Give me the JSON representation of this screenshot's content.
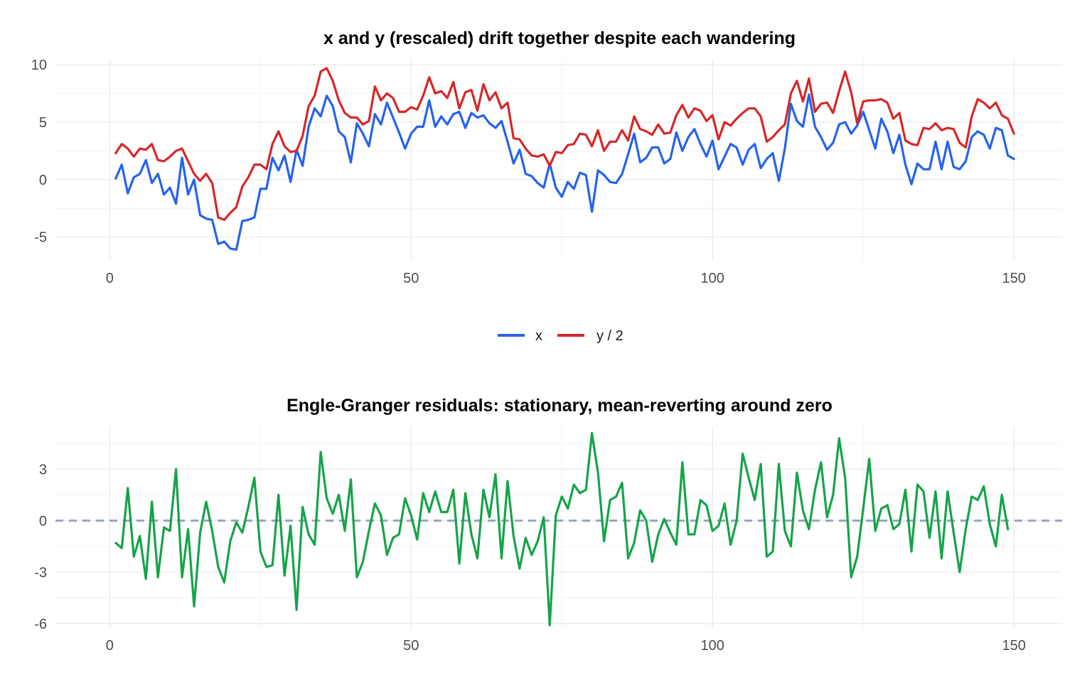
{
  "chart_data": [
    {
      "type": "line",
      "title": "x and y (rescaled) drift together despite each wandering",
      "xlabel": "",
      "ylabel": "",
      "xlim": [
        -9,
        158
      ],
      "ylim": [
        -7,
        10.5
      ],
      "x_ticks": [
        0,
        50,
        100,
        150
      ],
      "y_ticks": [
        -5,
        0,
        5,
        10
      ],
      "x_tick_labels": [
        "0",
        "50",
        "100",
        "150"
      ],
      "y_tick_labels": [
        "-5",
        "0",
        "5",
        "10"
      ],
      "grid": true,
      "legend": "bottom",
      "x_start": 1,
      "series": [
        {
          "name": "x",
          "color": "#2563eb",
          "values": [
            0.1,
            1.3,
            -1.2,
            0.2,
            0.5,
            1.7,
            -0.3,
            0.5,
            -1.3,
            -0.7,
            -2.1,
            1.9,
            -1.3,
            0.0,
            -3.1,
            -3.4,
            -3.5,
            -5.6,
            -5.4,
            -6.0,
            -6.1,
            -3.6,
            -3.5,
            -3.3,
            -0.8,
            -0.8,
            1.9,
            0.8,
            2.1,
            -0.2,
            2.6,
            1.2,
            4.6,
            6.2,
            5.5,
            7.3,
            6.4,
            4.2,
            3.7,
            1.5,
            4.9,
            4.0,
            2.9,
            5.7,
            4.8,
            6.7,
            5.4,
            4.1,
            2.7,
            4.0,
            4.6,
            4.6,
            6.9,
            4.6,
            5.5,
            4.8,
            5.7,
            5.9,
            4.5,
            5.8,
            5.4,
            5.6,
            4.9,
            4.5,
            5.1,
            3.3,
            1.4,
            2.6,
            0.5,
            0.3,
            -0.3,
            -0.7,
            1.4,
            -0.7,
            -1.5,
            -0.2,
            -0.8,
            0.6,
            0.4,
            -2.8,
            0.8,
            0.4,
            -0.2,
            -0.3,
            0.5,
            2.2,
            4.0,
            1.5,
            1.9,
            2.8,
            2.8,
            1.4,
            1.8,
            4.1,
            2.5,
            3.7,
            4.4,
            3.1,
            2.0,
            3.4,
            0.9,
            2.0,
            3.1,
            2.8,
            1.3,
            2.6,
            3.1,
            1.0,
            1.8,
            2.3,
            -0.1,
            2.7,
            6.6,
            5.1,
            4.6,
            7.4,
            4.6,
            3.7,
            2.6,
            3.2,
            4.8,
            5.0,
            4.0,
            4.7,
            5.9,
            4.3,
            2.7,
            5.3,
            4.2,
            2.3,
            3.9,
            1.3,
            -0.4,
            1.4,
            0.9,
            0.9,
            3.3,
            0.9,
            3.3,
            1.1,
            0.9,
            1.6,
            3.7,
            4.2,
            3.9,
            2.7,
            4.5,
            4.3,
            2.1,
            1.8
          ]
        },
        {
          "name": "y / 2",
          "color": "#d62728",
          "values": [
            2.3,
            3.1,
            2.7,
            2.0,
            2.7,
            2.6,
            3.1,
            1.7,
            1.6,
            2.0,
            2.5,
            2.7,
            1.6,
            0.5,
            -0.1,
            0.5,
            -0.3,
            -3.3,
            -3.5,
            -2.9,
            -2.4,
            -0.6,
            0.2,
            1.3,
            1.3,
            0.9,
            3.1,
            4.2,
            2.9,
            2.4,
            2.5,
            3.8,
            6.4,
            7.3,
            9.4,
            9.7,
            8.6,
            6.9,
            5.8,
            5.4,
            5.4,
            4.8,
            5.1,
            8.1,
            6.9,
            7.5,
            7.1,
            5.9,
            5.9,
            6.3,
            6.1,
            7.3,
            8.9,
            7.5,
            7.7,
            7.1,
            8.5,
            6.2,
            7.6,
            7.8,
            6.0,
            8.3,
            6.9,
            7.6,
            6.2,
            6.7,
            3.6,
            3.5,
            2.7,
            2.1,
            2.0,
            2.2,
            1.2,
            2.4,
            2.3,
            3.0,
            3.1,
            4.0,
            3.9,
            2.9,
            4.3,
            2.5,
            3.3,
            3.3,
            4.3,
            3.4,
            5.5,
            4.4,
            4.2,
            3.9,
            4.8,
            4.0,
            4.1,
            5.6,
            6.5,
            5.4,
            6.2,
            6.0,
            5.1,
            5.6,
            3.5,
            5.0,
            4.7,
            5.3,
            5.8,
            6.2,
            6.2,
            5.5,
            3.3,
            3.7,
            4.3,
            4.8,
            7.5,
            8.6,
            6.8,
            8.8,
            5.9,
            6.6,
            6.7,
            5.8,
            7.7,
            9.4,
            7.6,
            4.9,
            6.8,
            6.9,
            6.9,
            7.0,
            6.7,
            5.3,
            5.8,
            3.4,
            3.1,
            3.0,
            4.5,
            4.4,
            4.9,
            4.3,
            4.5,
            4.4,
            3.2,
            2.8,
            5.5,
            7.0,
            6.7,
            6.2,
            6.7,
            5.6,
            5.3,
            4.0
          ]
        }
      ]
    },
    {
      "type": "line",
      "title": "Engle-Granger residuals: stationary, mean-reverting around zero",
      "xlabel": "",
      "ylabel": "",
      "xlim": [
        -9,
        158
      ],
      "ylim": [
        -6.3,
        5.5
      ],
      "x_ticks": [
        0,
        50,
        100,
        150
      ],
      "y_ticks": [
        -6,
        -3,
        0,
        3
      ],
      "x_tick_labels": [
        "0",
        "50",
        "100",
        "150"
      ],
      "y_tick_labels": [
        "-6",
        "-3",
        "0",
        "3"
      ],
      "grid": true,
      "reference_line": {
        "y": 0,
        "style": "dashed",
        "color": "#94a3b8"
      },
      "x_start": 1,
      "series": [
        {
          "color": "#16a34a",
          "values": [
            -1.3,
            -1.6,
            1.9,
            -2.1,
            -0.9,
            -3.4,
            1.1,
            -3.3,
            -0.4,
            -0.6,
            3.0,
            -3.3,
            -0.5,
            -5.0,
            -0.7,
            1.1,
            -0.6,
            -2.7,
            -3.6,
            -1.2,
            -0.1,
            -0.7,
            0.8,
            2.5,
            -1.8,
            -2.7,
            -2.6,
            1.5,
            -3.2,
            -0.3,
            -5.2,
            0.8,
            -0.8,
            -1.4,
            4.0,
            1.3,
            0.4,
            1.5,
            -0.6,
            2.4,
            -3.3,
            -2.4,
            -0.6,
            1.0,
            0.3,
            -2.0,
            -1.0,
            -0.8,
            1.3,
            0.3,
            -1.1,
            1.6,
            0.5,
            1.7,
            0.5,
            0.5,
            1.8,
            -2.5,
            1.6,
            -0.8,
            -2.2,
            1.8,
            0.2,
            2.7,
            -2.2,
            2.3,
            -0.9,
            -2.8,
            -1.0,
            -2.0,
            -1.2,
            0.2,
            -6.1,
            0.3,
            1.4,
            0.7,
            2.1,
            1.6,
            1.8,
            5.1,
            2.8,
            -1.2,
            1.2,
            1.4,
            2.2,
            -2.2,
            -1.3,
            0.6,
            0.0,
            -2.4,
            -0.8,
            0.1,
            -0.7,
            -1.4,
            3.4,
            -0.8,
            -0.8,
            1.2,
            0.9,
            -0.6,
            -0.3,
            1.0,
            -1.4,
            0.0,
            3.9,
            2.5,
            1.2,
            3.3,
            -2.1,
            -1.8,
            3.3,
            -0.6,
            -1.5,
            2.8,
            0.6,
            -0.5,
            1.8,
            3.4,
            0.2,
            1.5,
            4.8,
            2.5,
            -3.3,
            -2.1,
            0.7,
            3.6,
            -0.6,
            0.7,
            0.9,
            -0.5,
            -0.2,
            1.8,
            -1.8,
            2.1,
            1.7,
            -1.0,
            1.7,
            -2.2,
            1.7,
            -0.7,
            -3.0,
            -0.5,
            1.4,
            1.2,
            2.0,
            -0.2,
            -1.5,
            1.5,
            -0.5
          ]
        }
      ]
    }
  ]
}
